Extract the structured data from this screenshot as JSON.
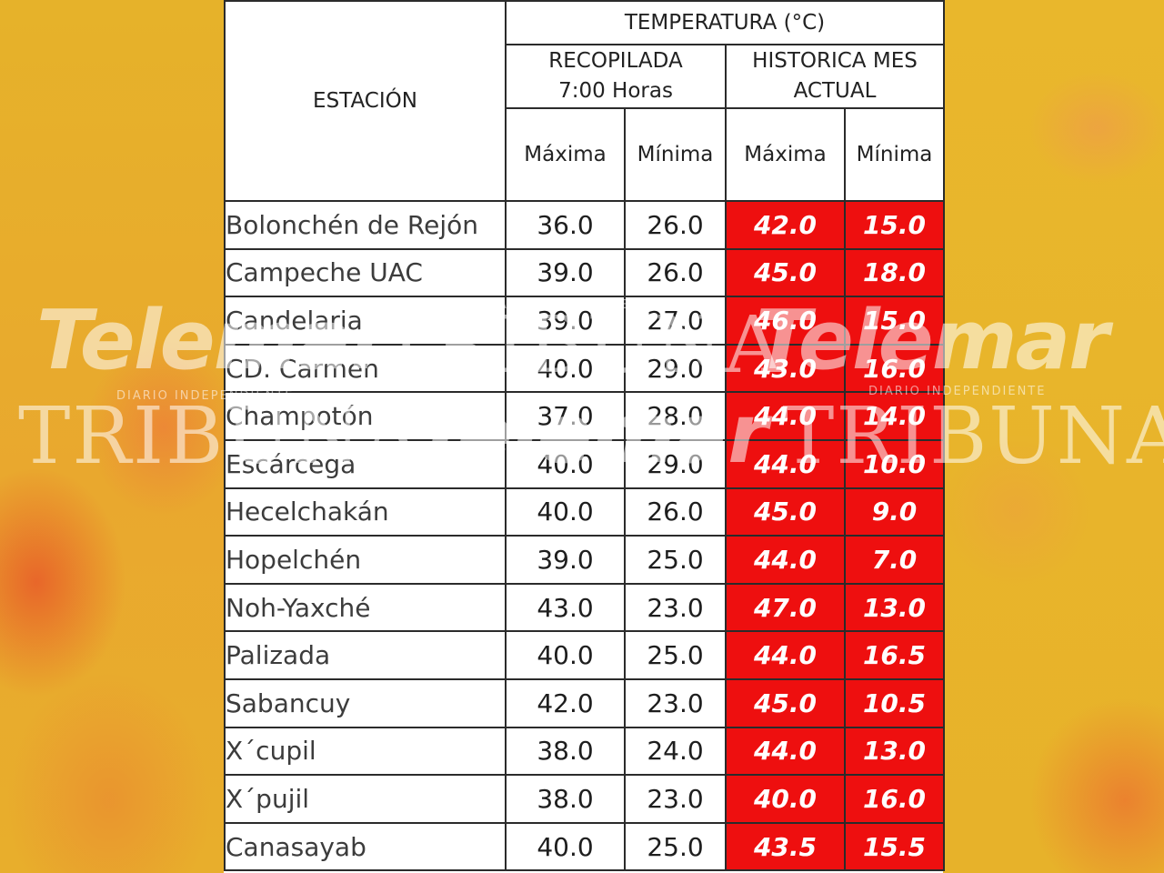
{
  "table": {
    "header": {
      "station": "ESTACIÓN",
      "temperature": "TEMPERATURA (°C)",
      "recorded_line1": "RECOPILADA",
      "recorded_line2": "7:00 Horas",
      "historic_line1": "HISTORICA MES",
      "historic_line2": "ACTUAL",
      "max": "Máxima",
      "min": "Mínima",
      "hist_max": "Máxima",
      "hist_min": "Mínima"
    },
    "rows": [
      {
        "station": "Bolonchén de Rejón",
        "max": "36.0",
        "min": "26.0",
        "hist_max": "42.0",
        "hist_min": "15.0"
      },
      {
        "station": "Campeche UAC",
        "max": "39.0",
        "min": "26.0",
        "hist_max": "45.0",
        "hist_min": "18.0"
      },
      {
        "station": "Candelaria",
        "max": "39.0",
        "min": "27.0",
        "hist_max": "46.0",
        "hist_min": "15.0"
      },
      {
        "station": "CD. Carmen",
        "max": "40.0",
        "min": "29.0",
        "hist_max": "43.0",
        "hist_min": "16.0"
      },
      {
        "station": "Champotón",
        "max": "37.0",
        "min": "28.0",
        "hist_max": "44.0",
        "hist_min": "14.0"
      },
      {
        "station": "Escárcega",
        "max": "40.0",
        "min": "29.0",
        "hist_max": "44.0",
        "hist_min": "10.0"
      },
      {
        "station": "Hecelchakán",
        "max": "40.0",
        "min": "26.0",
        "hist_max": "45.0",
        "hist_min": "9.0"
      },
      {
        "station": "Hopelchén",
        "max": "39.0",
        "min": "25.0",
        "hist_max": "44.0",
        "hist_min": "7.0"
      },
      {
        "station": "Noh-Yaxché",
        "max": "43.0",
        "min": "23.0",
        "hist_max": "47.0",
        "hist_min": "13.0"
      },
      {
        "station": "Palizada",
        "max": "40.0",
        "min": "25.0",
        "hist_max": "44.0",
        "hist_min": "16.5"
      },
      {
        "station": "Sabancuy",
        "max": "42.0",
        "min": "23.0",
        "hist_max": "45.0",
        "hist_min": "10.5"
      },
      {
        "station": "X´cupil",
        "max": "38.0",
        "min": "24.0",
        "hist_max": "44.0",
        "hist_min": "13.0"
      },
      {
        "station": "X´pujil",
        "max": "38.0",
        "min": "23.0",
        "hist_max": "40.0",
        "hist_min": "16.0"
      },
      {
        "station": "Canasayab",
        "max": "40.0",
        "min": "25.0",
        "hist_max": "43.5",
        "hist_min": "15.5"
      }
    ]
  },
  "watermarks": {
    "telemar": "Telemar",
    "tribuna": "TRIBUNA",
    "tagline": "DIARIO INDEPENDIENTE"
  },
  "colors": {
    "background": "#e8b428",
    "historic_cell": "#ee0f0f",
    "grid": "#2b2b2b"
  }
}
